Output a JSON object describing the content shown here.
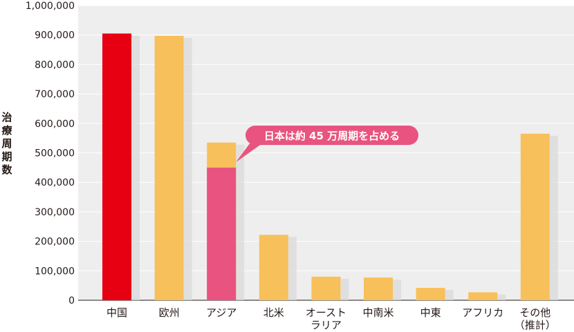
{
  "chart_data": {
    "type": "bar",
    "ylabel": "治療周期数",
    "ylim": [
      0,
      1000000
    ],
    "yticks": [
      0,
      100000,
      200000,
      300000,
      400000,
      500000,
      600000,
      700000,
      800000,
      900000,
      1000000
    ],
    "ytick_labels": [
      "0",
      "100,000",
      "200,000",
      "300,000",
      "400,000",
      "500,000",
      "600,000",
      "700,000",
      "800,000",
      "900,000",
      "1,000,000"
    ],
    "categories": [
      [
        "中国"
      ],
      [
        "欧州"
      ],
      [
        "アジア"
      ],
      [
        "北米"
      ],
      [
        "オースト",
        "ラリア"
      ],
      [
        "中南米"
      ],
      [
        "中東"
      ],
      [
        "アフリカ"
      ],
      [
        "その他",
        "（推計）"
      ]
    ],
    "values": [
      905000,
      897000,
      535000,
      222000,
      80000,
      77000,
      42000,
      27000,
      565000
    ],
    "highlight": {
      "category_index": 2,
      "value": 450000,
      "label": "日本は約 45 万周期を占める"
    },
    "grid": true,
    "colors": {
      "china": "#e60012",
      "default": "#f8c05a",
      "highlight": "#e8547f",
      "panel": "#eeeeee",
      "shadow": "#d8d8d8"
    }
  }
}
